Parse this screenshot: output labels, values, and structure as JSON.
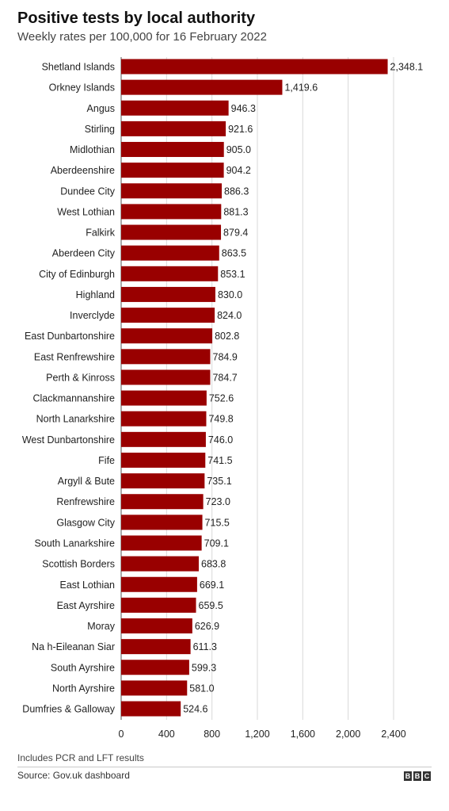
{
  "chart_data": {
    "type": "bar",
    "orientation": "horizontal",
    "title": "Positive tests by local authority",
    "subtitle": "Weekly rates per 100,000 for 16 February 2022",
    "categories": [
      "Shetland Islands",
      "Orkney Islands",
      "Angus",
      "Stirling",
      "Midlothian",
      "Aberdeenshire",
      "Dundee City",
      "West Lothian",
      "Falkirk",
      "Aberdeen City",
      "City of Edinburgh",
      "Highland",
      "Inverclyde",
      "East Dunbartonshire",
      "East Renfrewshire",
      "Perth & Kinross",
      "Clackmannanshire",
      "North Lanarkshire",
      "West Dunbartonshire",
      "Fife",
      "Argyll & Bute",
      "Renfrewshire",
      "Glasgow City",
      "South Lanarkshire",
      "Scottish Borders",
      "East Lothian",
      "East Ayrshire",
      "Moray",
      "Na h-Eileanan Siar",
      "South Ayrshire",
      "North Ayrshire",
      "Dumfries & Galloway"
    ],
    "values": [
      2348.1,
      1419.6,
      946.3,
      921.6,
      905.0,
      904.2,
      886.3,
      881.3,
      879.4,
      863.5,
      853.1,
      830.0,
      824.0,
      802.8,
      784.9,
      784.7,
      752.6,
      749.8,
      746.0,
      741.5,
      735.1,
      723.0,
      715.5,
      709.1,
      683.8,
      669.1,
      659.5,
      626.9,
      611.3,
      599.3,
      581.0,
      524.6
    ],
    "value_labels": [
      "2,348.1",
      "1,419.6",
      "946.3",
      "921.6",
      "905.0",
      "904.2",
      "886.3",
      "881.3",
      "879.4",
      "863.5",
      "853.1",
      "830.0",
      "824.0",
      "802.8",
      "784.9",
      "784.7",
      "752.6",
      "749.8",
      "746.0",
      "741.5",
      "735.1",
      "723.0",
      "715.5",
      "709.1",
      "683.8",
      "669.1",
      "659.5",
      "626.9",
      "611.3",
      "599.3",
      "581.0",
      "524.6"
    ],
    "x_ticks": [
      0,
      400,
      800,
      1200,
      1600,
      2000,
      2400
    ],
    "x_tick_labels": [
      "0",
      "400",
      "800",
      "1,200",
      "1,600",
      "2,000",
      "2,400"
    ],
    "xlim": [
      0,
      2400
    ],
    "xlabel": "",
    "ylabel": "",
    "grid": "vertical",
    "bar_color": "#990000"
  },
  "footnote": "Includes PCR and LFT results",
  "source": "Source: Gov.uk dashboard",
  "logo": [
    "B",
    "B",
    "C"
  ]
}
